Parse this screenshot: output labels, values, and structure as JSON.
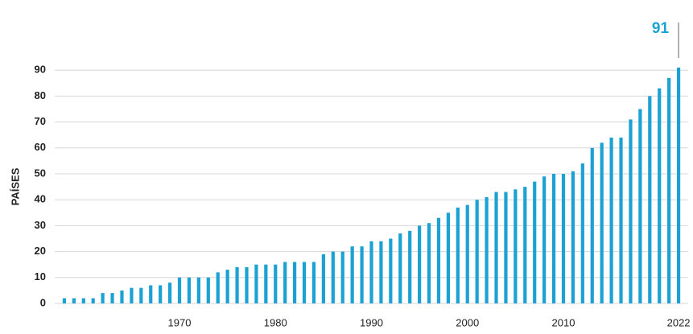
{
  "chart_data": {
    "type": "bar",
    "ylabel": "PAÍSES",
    "annotation": "91",
    "color": "#1ba1d3",
    "x": [
      1958,
      1959,
      1960,
      1961,
      1962,
      1963,
      1964,
      1965,
      1966,
      1967,
      1968,
      1969,
      1970,
      1971,
      1972,
      1973,
      1974,
      1975,
      1976,
      1977,
      1978,
      1979,
      1980,
      1981,
      1982,
      1983,
      1984,
      1985,
      1986,
      1987,
      1988,
      1989,
      1990,
      1991,
      1992,
      1993,
      1994,
      1995,
      1996,
      1997,
      1998,
      1999,
      2000,
      2001,
      2002,
      2003,
      2004,
      2005,
      2006,
      2007,
      2008,
      2009,
      2010,
      2011,
      2012,
      2013,
      2014,
      2015,
      2016,
      2017,
      2018,
      2019,
      2020,
      2021,
      2022
    ],
    "values": [
      2,
      2,
      2,
      2,
      4,
      4,
      5,
      6,
      6,
      7,
      7,
      8,
      10,
      10,
      10,
      10,
      12,
      13,
      14,
      14,
      15,
      15,
      15,
      16,
      16,
      16,
      16,
      19,
      20,
      20,
      22,
      22,
      24,
      24,
      25,
      27,
      28,
      30,
      31,
      33,
      35,
      37,
      38,
      40,
      41,
      43,
      43,
      44,
      45,
      47,
      49,
      50,
      50,
      51,
      54,
      60,
      62,
      64,
      64,
      71,
      75,
      80,
      83,
      87,
      91
    ],
    "xlim": [
      1957,
      2023
    ],
    "xticks": [
      1970,
      1980,
      1990,
      2000,
      2010,
      2022
    ],
    "ylim": [
      0,
      100
    ],
    "yticks": [
      0,
      10,
      20,
      30,
      40,
      50,
      60,
      70,
      80,
      90
    ],
    "grid": true
  }
}
